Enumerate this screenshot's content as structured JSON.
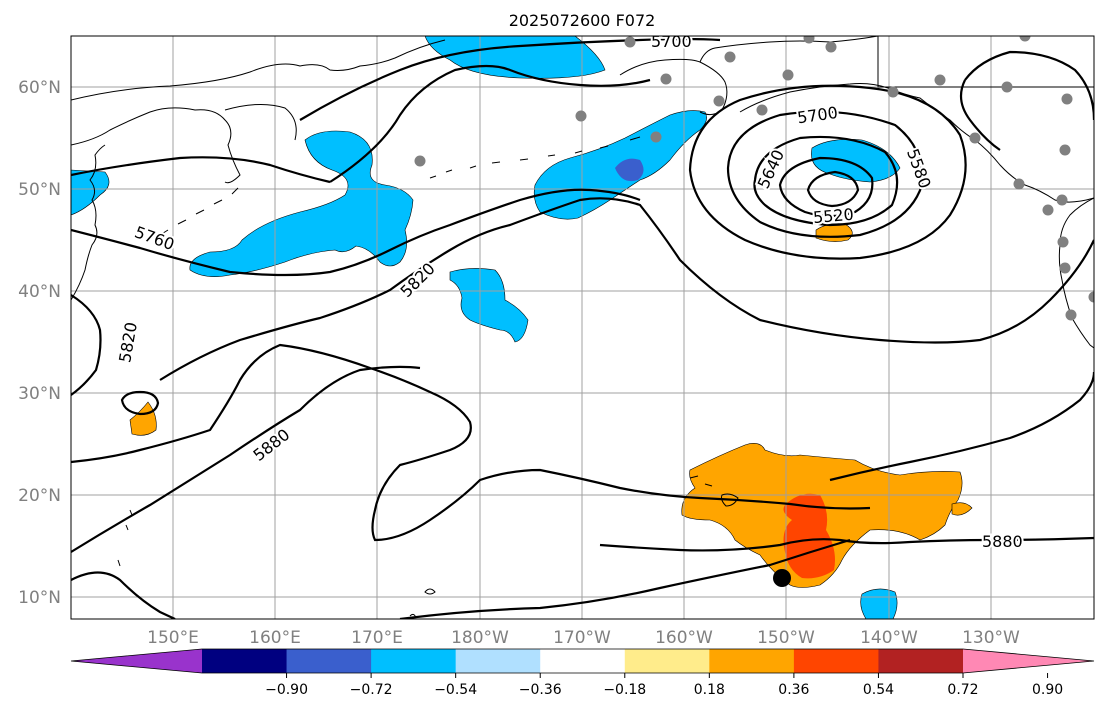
{
  "title": "2025072600 F072",
  "lat_labels": [
    "60°N",
    "50°N",
    "40°N",
    "30°N",
    "20°N",
    "10°N"
  ],
  "lon_labels": [
    "150°E",
    "160°E",
    "170°E",
    "180°W",
    "170°W",
    "160°W",
    "150°W",
    "140°W",
    "130°W"
  ],
  "colorbar": {
    "ticks": [
      "−0.90",
      "−0.72",
      "−0.54",
      "−0.36",
      "−0.18",
      "0.18",
      "0.36",
      "0.54",
      "0.72",
      "0.90"
    ],
    "colors": [
      "#9933cc",
      "#000080",
      "#3a5fcd",
      "#00bfff",
      "#b0e0ff",
      "#ffffff",
      "#ffec8b",
      "#ffa500",
      "#ff4500",
      "#b22222",
      "#ff88b4"
    ]
  },
  "contour_labels": [
    "5700",
    "5700",
    "5640",
    "5580",
    "5520",
    "5760",
    "5820",
    "5820",
    "5880",
    "5880"
  ],
  "colors": {
    "blue_fill": "#00bfff",
    "dark_blue_fill": "#3a5fcd",
    "orange_fill": "#ffa500",
    "red_fill": "#ff4500",
    "station": "#808080",
    "grid": "#a0a0a0"
  }
}
